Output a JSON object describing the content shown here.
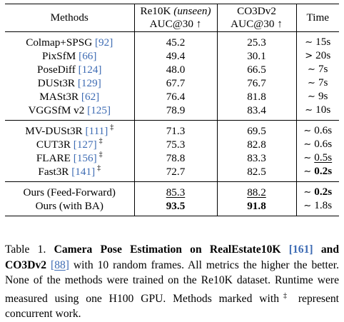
{
  "table": {
    "headers": {
      "method": "Methods",
      "re10k_line1": "Re10K",
      "re10k_unseen": "(unseen)",
      "re10k_line2": "AUC@30",
      "co3d_line1": "CO3Dv2",
      "co3d_line2": "AUC@30",
      "up_arrow": "↑",
      "time": "Time"
    },
    "groups": [
      {
        "rows": [
          {
            "name": "Colmap+SPSG",
            "ref": "92",
            "dagger": "",
            "re10k": "45.2",
            "co3d": "25.3",
            "time_sym": "∼",
            "time": "15s"
          },
          {
            "name": "PixSfM",
            "ref": "66",
            "dagger": "",
            "re10k": "49.4",
            "co3d": "30.1",
            "time_sym": ">",
            "time": "20s"
          },
          {
            "name": "PoseDiff",
            "ref": "124",
            "dagger": "",
            "re10k": "48.0",
            "co3d": "66.5",
            "time_sym": "∼",
            "time": "7s"
          },
          {
            "name": "DUSt3R",
            "ref": "129",
            "dagger": "",
            "re10k": "67.7",
            "co3d": "76.7",
            "time_sym": "∼",
            "time": "7s"
          },
          {
            "name": "MASt3R",
            "ref": "62",
            "dagger": "",
            "re10k": "76.4",
            "co3d": "81.8",
            "time_sym": "∼",
            "time": "9s"
          },
          {
            "name": "VGGSfM v2",
            "ref": "125",
            "dagger": "",
            "re10k": "78.9",
            "co3d": "83.4",
            "time_sym": "∼",
            "time": "10s"
          }
        ]
      },
      {
        "rows": [
          {
            "name": "MV-DUSt3R",
            "ref": "111",
            "dagger": "‡",
            "re10k": "71.3",
            "co3d": "69.5",
            "time_sym": "∼",
            "time": "0.6s"
          },
          {
            "name": "CUT3R",
            "ref": "127",
            "dagger": "‡",
            "re10k": "75.3",
            "co3d": "82.8",
            "time_sym": "∼",
            "time": "0.6s"
          },
          {
            "name": "FLARE",
            "ref": "156",
            "dagger": "‡",
            "re10k": "78.8",
            "co3d": "83.3",
            "time_sym": "∼",
            "time": "0.5s"
          },
          {
            "name": "Fast3R",
            "ref": "141",
            "dagger": "‡",
            "re10k": "72.7",
            "co3d": "82.5",
            "time_sym": "∼",
            "time": "0.2s"
          }
        ]
      },
      {
        "rows": [
          {
            "name": "Ours (Feed-Forward)",
            "ref": "",
            "dagger": "",
            "re10k": "85.3",
            "co3d": "88.2",
            "time_sym": "∼",
            "time": "0.2s"
          },
          {
            "name": "Ours (with BA)",
            "ref": "",
            "dagger": "",
            "re10k": "93.5",
            "co3d": "91.8",
            "time_sym": "∼",
            "time": "1.8s"
          }
        ]
      }
    ]
  },
  "caption": {
    "label": "Table 1.",
    "bold_a": "Camera Pose Estimation on RealEstate10K",
    "ref_a": "161",
    "bold_b": "and CO3Dv2",
    "ref_b": "88",
    "rest": "with 10 random frames. All metrics the higher the better. None of the methods were trained on the Re10K dataset. Runtime were measured using one H100 GPU. Methods marked with",
    "dagger": "‡",
    "rest_end": "represent concurrent work."
  }
}
